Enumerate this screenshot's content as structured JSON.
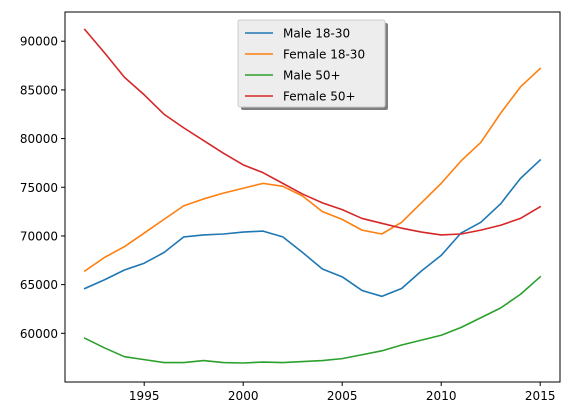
{
  "chart_data": {
    "type": "line",
    "title": "",
    "xlabel": "",
    "ylabel": "",
    "xlim": [
      1991,
      2016
    ],
    "ylim": [
      55000,
      93000
    ],
    "grid": false,
    "legend_position": "top-center",
    "x": [
      1992,
      1993,
      1994,
      1995,
      1996,
      1997,
      1998,
      1999,
      2000,
      2001,
      2002,
      2003,
      2004,
      2005,
      2006,
      2007,
      2008,
      2009,
      2010,
      2011,
      2012,
      2013,
      2014,
      2015
    ],
    "x_ticks": [
      1995,
      2000,
      2005,
      2010,
      2015
    ],
    "y_ticks": [
      60000,
      65000,
      70000,
      75000,
      80000,
      85000,
      90000
    ],
    "x_tick_labels": [
      "1995",
      "2000",
      "2005",
      "2010",
      "2015"
    ],
    "y_tick_labels": [
      "60000",
      "65000",
      "70000",
      "75000",
      "80000",
      "85000",
      "90000"
    ],
    "series": [
      {
        "name": "Male 18-30",
        "color": "#1f77b4",
        "values": [
          64600,
          65500,
          66500,
          67200,
          68300,
          69900,
          70100,
          70200,
          70400,
          70500,
          69900,
          68300,
          66600,
          65800,
          64400,
          63800,
          64600,
          66400,
          68000,
          70300,
          71400,
          73300,
          75900,
          77800
        ]
      },
      {
        "name": "Female 18-30",
        "color": "#ff7f0e",
        "values": [
          66400,
          67800,
          68900,
          70300,
          71700,
          73100,
          73800,
          74400,
          74900,
          75400,
          75100,
          74100,
          72500,
          71700,
          70600,
          70200,
          71400,
          73400,
          75400,
          77700,
          79600,
          82600,
          85300,
          87200
        ]
      },
      {
        "name": "Male 50+",
        "color": "#2ca02c",
        "values": [
          59500,
          58500,
          57600,
          57300,
          57000,
          57000,
          57200,
          57000,
          56950,
          57050,
          57000,
          57100,
          57200,
          57400,
          57800,
          58200,
          58800,
          59300,
          59800,
          60600,
          61600,
          62600,
          64000,
          65800
        ]
      },
      {
        "name": "Female 50+",
        "color": "#d62728",
        "values": [
          91200,
          88800,
          86300,
          84500,
          82500,
          81100,
          79800,
          78500,
          77300,
          76500,
          75400,
          74300,
          73400,
          72700,
          71800,
          71300,
          70800,
          70400,
          70100,
          70200,
          70600,
          71100,
          71800,
          73000
        ]
      }
    ]
  }
}
